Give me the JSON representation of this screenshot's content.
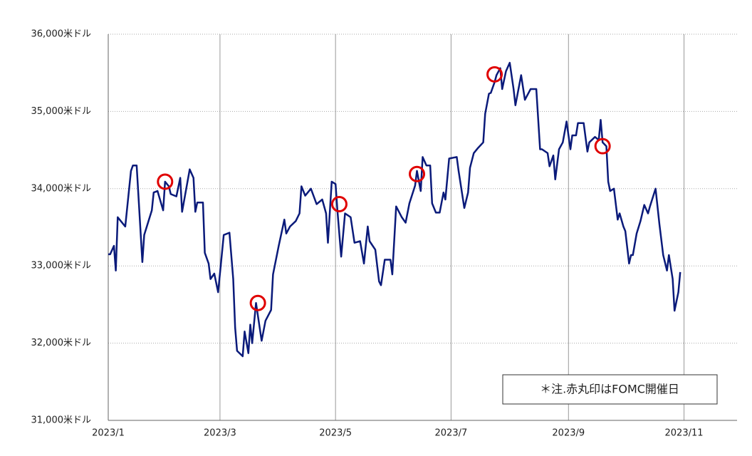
{
  "chart_data": {
    "type": "line",
    "annotation": "＊注.赤丸印はFOMC開催日",
    "xlim": [
      0,
      332
    ],
    "xticks": [
      {
        "value": 0,
        "label": "2023/1"
      },
      {
        "value": 59,
        "label": "2023/3"
      },
      {
        "value": 120,
        "label": "2023/5"
      },
      {
        "value": 181,
        "label": "2023/7"
      },
      {
        "value": 243,
        "label": "2023/9"
      },
      {
        "value": 304,
        "label": "2023/11"
      }
    ],
    "ylim": [
      31000,
      36000
    ],
    "yticks": [
      {
        "value": 31000,
        "label": "31,000米ドル"
      },
      {
        "value": 32000,
        "label": "32,000米ドル"
      },
      {
        "value": 33000,
        "label": "33,000米ドル"
      },
      {
        "value": 34000,
        "label": "34,000米ドル"
      },
      {
        "value": 35000,
        "label": "35,000米ドル"
      },
      {
        "value": 36000,
        "label": "36,000米ドル"
      }
    ],
    "grid": true,
    "series": [
      {
        "color": "#0a1a7a",
        "mark": "line",
        "x": [
          0,
          1,
          3,
          4,
          5,
          9,
          12,
          13,
          15,
          18,
          19,
          23,
          24,
          26,
          29,
          30,
          32,
          33,
          36,
          38,
          39,
          43,
          45,
          46,
          47,
          50,
          51,
          53,
          54,
          56,
          58,
          61,
          64,
          66,
          67,
          68,
          71,
          72,
          74,
          75,
          76,
          78,
          81,
          83,
          86,
          87,
          90,
          93,
          94,
          96,
          99,
          101,
          102,
          104,
          107,
          110,
          113,
          115,
          116,
          118,
          120,
          121,
          123,
          125,
          128,
          130,
          133,
          135,
          137,
          138,
          141,
          143,
          144,
          146,
          149,
          150,
          152,
          155,
          157,
          159,
          162,
          163,
          165,
          166,
          168,
          170,
          171,
          173,
          175,
          177,
          178,
          180,
          184,
          185,
          188,
          190,
          191,
          193,
          195,
          198,
          199,
          201,
          202,
          204,
          205,
          207,
          208,
          210,
          212,
          214,
          215,
          218,
          220,
          223,
          226,
          228,
          229,
          232,
          233,
          235,
          236,
          238,
          240,
          242,
          244,
          245,
          247,
          248,
          251,
          253,
          254,
          257,
          259,
          260,
          261,
          263,
          264,
          265,
          267,
          269,
          270,
          272,
          273,
          275,
          276,
          277,
          279,
          281,
          283,
          285,
          286,
          289,
          291,
          293,
          295,
          296,
          298,
          299,
          301,
          302
        ],
        "values": [
          33150,
          33150,
          33260,
          32940,
          33630,
          33510,
          34230,
          34300,
          34300,
          33050,
          33400,
          33720,
          33950,
          33970,
          33720,
          34090,
          34030,
          33930,
          33900,
          34140,
          33700,
          34250,
          34140,
          33700,
          33820,
          33820,
          33170,
          33030,
          32830,
          32900,
          32660,
          33400,
          33430,
          32830,
          32200,
          31900,
          31830,
          32150,
          31870,
          32240,
          32000,
          32520,
          32030,
          32290,
          32430,
          32890,
          33260,
          33600,
          33420,
          33510,
          33580,
          33680,
          34030,
          33910,
          34000,
          33800,
          33860,
          33680,
          33300,
          34090,
          34060,
          33720,
          33120,
          33680,
          33630,
          33300,
          33320,
          33030,
          33510,
          33320,
          33210,
          32800,
          32750,
          33080,
          33080,
          32890,
          33770,
          33630,
          33560,
          33810,
          34040,
          34230,
          33970,
          34410,
          34300,
          34300,
          33810,
          33690,
          33690,
          33950,
          33860,
          34390,
          34410,
          34230,
          33750,
          33950,
          34270,
          34460,
          34520,
          34600,
          34970,
          35230,
          35240,
          35380,
          35470,
          35560,
          35290,
          35520,
          35630,
          35290,
          35080,
          35470,
          35150,
          35290,
          35290,
          34510,
          34510,
          34460,
          34290,
          34430,
          34120,
          34510,
          34600,
          34870,
          34510,
          34690,
          34690,
          34850,
          34850,
          34480,
          34600,
          34670,
          34630,
          34890,
          34600,
          34550,
          34090,
          33970,
          34000,
          33600,
          33680,
          33510,
          33450,
          33030,
          33140,
          33140,
          33420,
          33580,
          33790,
          33680,
          33770,
          34000,
          33540,
          33140,
          32940,
          33140,
          32830,
          32420,
          32660,
          32920
        ]
      },
      {
        "color": "#e00000",
        "mark": "circle",
        "x": [
          30,
          79,
          122,
          163,
          204,
          261
        ],
        "values": [
          34090,
          32520,
          33800,
          34190,
          35480,
          34550
        ]
      }
    ]
  }
}
